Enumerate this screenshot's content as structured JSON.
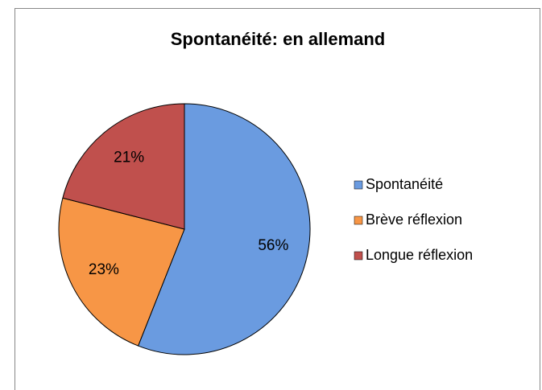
{
  "chart_data": {
    "type": "pie",
    "title": "Spontanéité: en allemand",
    "categories": [
      "Spontanéité",
      "Brève réflexion",
      "Longue réflexion"
    ],
    "values": [
      56,
      23,
      21
    ],
    "value_labels": [
      "56%",
      "23%",
      "21%"
    ],
    "colors": [
      "#6a9be0",
      "#f79646",
      "#c0504d"
    ],
    "legend": "right"
  }
}
